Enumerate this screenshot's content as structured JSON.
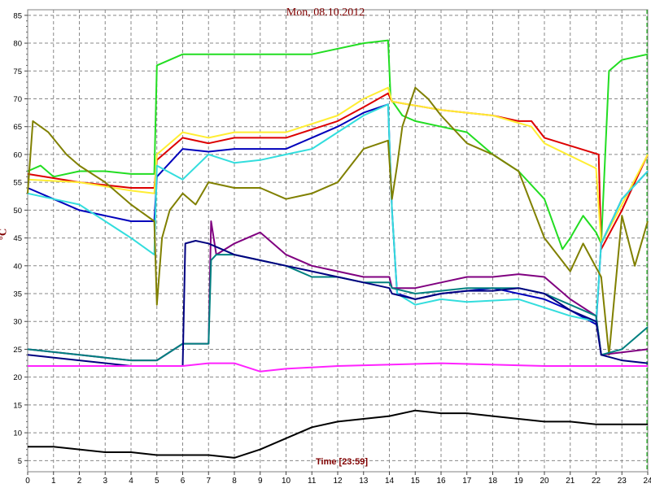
{
  "chart_data": {
    "type": "line",
    "title": "Mon, 08.10.2012",
    "ylabel": "°C",
    "xlabel": "Time [23:59]",
    "xlim": [
      0,
      24
    ],
    "ylim": [
      3,
      86
    ],
    "x_ticks": [
      0,
      1,
      2,
      3,
      4,
      5,
      6,
      7,
      8,
      9,
      10,
      11,
      12,
      13,
      14,
      15,
      16,
      17,
      18,
      19,
      20,
      21,
      22,
      23,
      24
    ],
    "y_ticks": [
      5,
      10,
      15,
      20,
      25,
      30,
      35,
      40,
      45,
      50,
      55,
      60,
      65,
      70,
      75,
      80,
      85
    ],
    "grid": true,
    "series": [
      {
        "color": "#22dd22",
        "points": [
          [
            0,
            57
          ],
          [
            0.5,
            58
          ],
          [
            1,
            56
          ],
          [
            2,
            57
          ],
          [
            3,
            57
          ],
          [
            4,
            56.5
          ],
          [
            4.9,
            56.5
          ],
          [
            5,
            76
          ],
          [
            6,
            78
          ],
          [
            7,
            78
          ],
          [
            9,
            78
          ],
          [
            11,
            78
          ],
          [
            13,
            80
          ],
          [
            13.95,
            80.5
          ],
          [
            14.05,
            70
          ],
          [
            14.5,
            67
          ],
          [
            15,
            66
          ],
          [
            16,
            65
          ],
          [
            17,
            64
          ],
          [
            18,
            60
          ],
          [
            19,
            57
          ],
          [
            20,
            52
          ],
          [
            20.7,
            43
          ],
          [
            21,
            45
          ],
          [
            21.5,
            49
          ],
          [
            22,
            46
          ],
          [
            22.2,
            44
          ],
          [
            22.5,
            75
          ],
          [
            23,
            77
          ],
          [
            24,
            78
          ]
        ]
      },
      {
        "color": "#dd0000",
        "points": [
          [
            0,
            56.5
          ],
          [
            2,
            55
          ],
          [
            4,
            54
          ],
          [
            4.9,
            54
          ],
          [
            5,
            59
          ],
          [
            6,
            63
          ],
          [
            7,
            62
          ],
          [
            8,
            63
          ],
          [
            10,
            63
          ],
          [
            12,
            66
          ],
          [
            13,
            68.5
          ],
          [
            13.95,
            71
          ],
          [
            14.1,
            69.5
          ],
          [
            16,
            68
          ],
          [
            18,
            67
          ],
          [
            19,
            66
          ],
          [
            19.5,
            66
          ],
          [
            20,
            63
          ],
          [
            22.1,
            60
          ],
          [
            22.2,
            43
          ],
          [
            23,
            50
          ],
          [
            24,
            60
          ]
        ]
      },
      {
        "color": "#ffee33",
        "points": [
          [
            0,
            55.5
          ],
          [
            2,
            55
          ],
          [
            4,
            53.5
          ],
          [
            4.9,
            53
          ],
          [
            5,
            60
          ],
          [
            6,
            64
          ],
          [
            7,
            63
          ],
          [
            8,
            64
          ],
          [
            10,
            64
          ],
          [
            12,
            67
          ],
          [
            13,
            70
          ],
          [
            13.95,
            72
          ],
          [
            14.1,
            69.5
          ],
          [
            16,
            68
          ],
          [
            18,
            67
          ],
          [
            19.5,
            65
          ],
          [
            20,
            62
          ],
          [
            22,
            57.5
          ],
          [
            22.2,
            44
          ],
          [
            23,
            51
          ],
          [
            24,
            60
          ]
        ]
      },
      {
        "color": "#0000bb",
        "points": [
          [
            0,
            54
          ],
          [
            1,
            52
          ],
          [
            2,
            50
          ],
          [
            3,
            49
          ],
          [
            4,
            48
          ],
          [
            4.9,
            48
          ],
          [
            5,
            56
          ],
          [
            6,
            61
          ],
          [
            7,
            60.5
          ],
          [
            8,
            61
          ],
          [
            10,
            61
          ],
          [
            12,
            65
          ],
          [
            13,
            67.5
          ],
          [
            13.95,
            69
          ],
          [
            14.1,
            50
          ],
          [
            14.3,
            35
          ],
          [
            15,
            34
          ],
          [
            16,
            35
          ],
          [
            18,
            36
          ],
          [
            19,
            35
          ],
          [
            20,
            34
          ],
          [
            21,
            32
          ],
          [
            22,
            29.5
          ],
          [
            22.2,
            44
          ],
          [
            23,
            52
          ],
          [
            24,
            57
          ]
        ]
      },
      {
        "color": "#33dddd",
        "points": [
          [
            0,
            53
          ],
          [
            1,
            52
          ],
          [
            2,
            51
          ],
          [
            3,
            48
          ],
          [
            4,
            45
          ],
          [
            4.9,
            42
          ],
          [
            5,
            58
          ],
          [
            6,
            55.5
          ],
          [
            7,
            60
          ],
          [
            8,
            58.5
          ],
          [
            9,
            59
          ],
          [
            10,
            60
          ],
          [
            11,
            61
          ],
          [
            12,
            64
          ],
          [
            13,
            67
          ],
          [
            13.95,
            69
          ],
          [
            14.1,
            50
          ],
          [
            14.3,
            35
          ],
          [
            15,
            33
          ],
          [
            16,
            34
          ],
          [
            17,
            33.5
          ],
          [
            19,
            34
          ],
          [
            21,
            31
          ],
          [
            22,
            30
          ],
          [
            22.2,
            44
          ],
          [
            23,
            52
          ],
          [
            24,
            57
          ]
        ]
      },
      {
        "color": "#808000",
        "points": [
          [
            0,
            53
          ],
          [
            0.2,
            66
          ],
          [
            0.8,
            64
          ],
          [
            1.5,
            60
          ],
          [
            2,
            58
          ],
          [
            3,
            55
          ],
          [
            4,
            51
          ],
          [
            4.9,
            48
          ],
          [
            5,
            33
          ],
          [
            5.2,
            45
          ],
          [
            5.5,
            50
          ],
          [
            6,
            53
          ],
          [
            6.5,
            51
          ],
          [
            7,
            55
          ],
          [
            8,
            54
          ],
          [
            9,
            54
          ],
          [
            10,
            52
          ],
          [
            11,
            53
          ],
          [
            12,
            55
          ],
          [
            13,
            61
          ],
          [
            13.95,
            62.5
          ],
          [
            14.1,
            52
          ],
          [
            14.3,
            58
          ],
          [
            14.5,
            65
          ],
          [
            15,
            72
          ],
          [
            15.5,
            70
          ],
          [
            16,
            67
          ],
          [
            17,
            62
          ],
          [
            18,
            60
          ],
          [
            19,
            57
          ],
          [
            20,
            45
          ],
          [
            21,
            39
          ],
          [
            21.5,
            44
          ],
          [
            22.2,
            38
          ],
          [
            22.5,
            24
          ],
          [
            23,
            49
          ],
          [
            23.5,
            40
          ],
          [
            24,
            48
          ]
        ]
      },
      {
        "color": "#800080",
        "points": [
          [
            0,
            25
          ],
          [
            2,
            24
          ],
          [
            4,
            23
          ],
          [
            4.9,
            23
          ],
          [
            5,
            23
          ],
          [
            6,
            26
          ],
          [
            7,
            26
          ],
          [
            7.1,
            48
          ],
          [
            7.3,
            42
          ],
          [
            8,
            44
          ],
          [
            9,
            46
          ],
          [
            10,
            42
          ],
          [
            11,
            40
          ],
          [
            12,
            39
          ],
          [
            13,
            38
          ],
          [
            14,
            38
          ],
          [
            14.1,
            36
          ],
          [
            15,
            36
          ],
          [
            16,
            37
          ],
          [
            17,
            38
          ],
          [
            18,
            38
          ],
          [
            19,
            38.5
          ],
          [
            20,
            38
          ],
          [
            21,
            34
          ],
          [
            22,
            31
          ],
          [
            22.2,
            24
          ],
          [
            24,
            25
          ]
        ]
      },
      {
        "color": "#008080",
        "points": [
          [
            0,
            25
          ],
          [
            2,
            24
          ],
          [
            4,
            23
          ],
          [
            4.9,
            23
          ],
          [
            5,
            23
          ],
          [
            6,
            26
          ],
          [
            7,
            26
          ],
          [
            7.1,
            41
          ],
          [
            7.3,
            42
          ],
          [
            8,
            42
          ],
          [
            9,
            41
          ],
          [
            10,
            40
          ],
          [
            11,
            38
          ],
          [
            12,
            38
          ],
          [
            13,
            37
          ],
          [
            14,
            37
          ],
          [
            14.1,
            36
          ],
          [
            15,
            35
          ],
          [
            16,
            35.5
          ],
          [
            17,
            36
          ],
          [
            18,
            36
          ],
          [
            19,
            36
          ],
          [
            20,
            35
          ],
          [
            21,
            33
          ],
          [
            22,
            31
          ],
          [
            22.2,
            24
          ],
          [
            23,
            25
          ],
          [
            24,
            29
          ]
        ]
      },
      {
        "color": "#000080",
        "points": [
          [
            0,
            24
          ],
          [
            2,
            23
          ],
          [
            4,
            22
          ],
          [
            4.9,
            22
          ],
          [
            5,
            22
          ],
          [
            6,
            22
          ],
          [
            6.1,
            44
          ],
          [
            6.5,
            44.5
          ],
          [
            7,
            44
          ],
          [
            8,
            42
          ],
          [
            9,
            41
          ],
          [
            10,
            40
          ],
          [
            11,
            39
          ],
          [
            12,
            38
          ],
          [
            13,
            37
          ],
          [
            14,
            36
          ],
          [
            14.1,
            35
          ],
          [
            15,
            34
          ],
          [
            16,
            35
          ],
          [
            17,
            35.5
          ],
          [
            18,
            35.5
          ],
          [
            19,
            36
          ],
          [
            20,
            35
          ],
          [
            21,
            32
          ],
          [
            22,
            30
          ],
          [
            22.2,
            24
          ],
          [
            23,
            23
          ],
          [
            24,
            22.5
          ]
        ]
      },
      {
        "color": "#ff22ff",
        "points": [
          [
            0,
            22
          ],
          [
            2,
            22
          ],
          [
            4,
            22
          ],
          [
            5,
            22
          ],
          [
            6,
            22
          ],
          [
            7,
            22.5
          ],
          [
            8,
            22.5
          ],
          [
            9,
            21
          ],
          [
            10,
            21.5
          ],
          [
            12,
            22
          ],
          [
            16,
            22.5
          ],
          [
            20,
            22
          ],
          [
            24,
            22
          ]
        ]
      },
      {
        "color": "#000000",
        "points": [
          [
            0,
            7.5
          ],
          [
            1,
            7.5
          ],
          [
            2,
            7
          ],
          [
            3,
            6.5
          ],
          [
            4,
            6.5
          ],
          [
            5,
            6
          ],
          [
            6,
            6
          ],
          [
            7,
            6
          ],
          [
            8,
            5.5
          ],
          [
            9,
            7
          ],
          [
            10,
            9
          ],
          [
            11,
            11
          ],
          [
            12,
            12
          ],
          [
            13,
            12.5
          ],
          [
            14,
            13
          ],
          [
            15,
            14
          ],
          [
            16,
            13.5
          ],
          [
            17,
            13.5
          ],
          [
            18,
            13
          ],
          [
            19,
            12.5
          ],
          [
            20,
            12
          ],
          [
            21,
            12
          ],
          [
            22,
            11.5
          ],
          [
            23,
            11.5
          ],
          [
            24,
            11.5
          ]
        ]
      }
    ]
  }
}
